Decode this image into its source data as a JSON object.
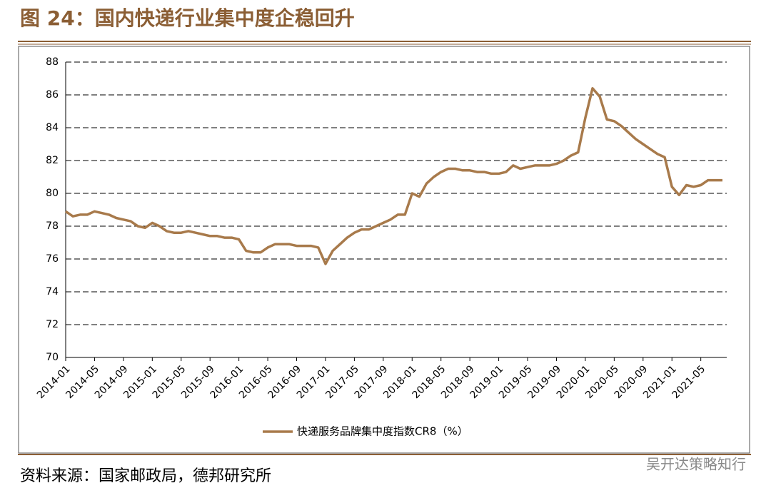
{
  "chart_data": {
    "type": "line",
    "title": "图 24：国内快递行业集中度企稳回升",
    "source": "资料来源：国家邮政局，德邦研究所",
    "watermark": "吴开达策略知行",
    "categories": [
      "2014-01",
      null,
      null,
      null,
      "2014-05",
      null,
      null,
      null,
      "2014-09",
      null,
      null,
      null,
      "2015-01",
      null,
      null,
      null,
      "2015-05",
      null,
      null,
      null,
      "2015-09",
      null,
      null,
      null,
      "2016-01",
      null,
      null,
      null,
      "2016-05",
      null,
      null,
      null,
      "2016-09",
      null,
      null,
      null,
      "2017-01",
      null,
      null,
      null,
      "2017-05",
      null,
      null,
      null,
      "2017-09",
      null,
      null,
      null,
      "2018-01",
      null,
      null,
      null,
      "2018-05",
      null,
      null,
      null,
      "2018-09",
      null,
      null,
      null,
      "2019-01",
      null,
      null,
      null,
      "2019-05",
      null,
      null,
      null,
      "2019-09",
      null,
      null,
      null,
      "2020-01",
      null,
      null,
      null,
      "2020-05",
      null,
      null,
      null,
      "2020-09",
      null,
      null,
      null,
      "2021-01",
      null,
      null,
      null,
      "2021-05",
      null,
      null,
      null
    ],
    "series": [
      {
        "name": "快递服务品牌集中度指数CR8（%）",
        "color": "#a87a4b",
        "values": [
          78.9,
          78.6,
          78.7,
          78.7,
          78.9,
          78.8,
          78.7,
          78.5,
          78.4,
          78.3,
          78.0,
          77.9,
          78.2,
          78.0,
          77.7,
          77.6,
          77.6,
          77.7,
          77.6,
          77.5,
          77.4,
          77.4,
          77.3,
          77.3,
          77.2,
          76.5,
          76.4,
          76.4,
          76.7,
          76.9,
          76.9,
          76.9,
          76.8,
          76.8,
          76.8,
          76.7,
          75.7,
          76.5,
          76.9,
          77.3,
          77.6,
          77.8,
          77.8,
          78.0,
          78.2,
          78.4,
          78.7,
          78.7,
          80.0,
          79.8,
          80.6,
          81.0,
          81.3,
          81.5,
          81.5,
          81.4,
          81.4,
          81.3,
          81.3,
          81.2,
          81.2,
          81.3,
          81.7,
          81.5,
          81.6,
          81.7,
          81.7,
          81.7,
          81.8,
          82.0,
          82.3,
          82.5,
          84.6,
          86.4,
          85.9,
          84.5,
          84.4,
          84.1,
          83.7,
          83.3,
          83.0,
          82.7,
          82.4,
          82.2,
          80.4,
          79.9,
          80.5,
          80.4,
          80.5,
          80.8,
          80.8,
          80.8
        ]
      }
    ],
    "ylim": [
      70,
      88
    ],
    "yticks": [
      70,
      72,
      74,
      76,
      78,
      80,
      82,
      84,
      86,
      88
    ],
    "grid": true
  }
}
